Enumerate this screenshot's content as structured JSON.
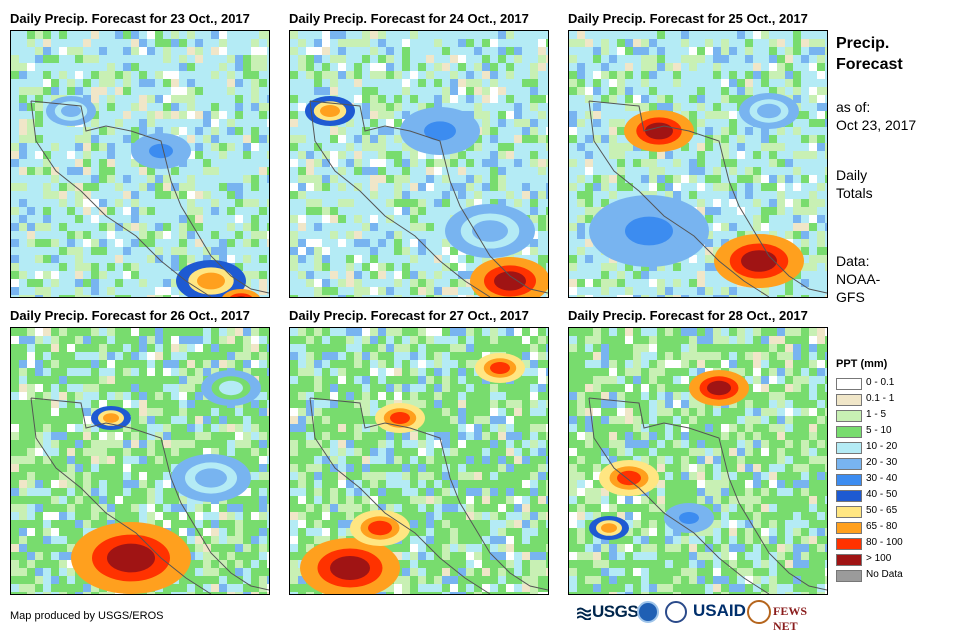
{
  "panels": [
    {
      "title": "Daily Precip. Forecast for 23 Oct., 2017"
    },
    {
      "title": "Daily Precip. Forecast for 24 Oct., 2017"
    },
    {
      "title": "Daily Precip. Forecast for 25 Oct., 2017"
    },
    {
      "title": "Daily Precip. Forecast for 26 Oct., 2017"
    },
    {
      "title": "Daily Precip. Forecast for 27 Oct., 2017"
    },
    {
      "title": "Daily Precip. Forecast for 28 Oct., 2017"
    }
  ],
  "sidebar": {
    "title_line1": "Precip.",
    "title_line2": "Forecast",
    "asof_label": "as of:",
    "asof_date": "Oct 23, 2017",
    "daily_line1": "Daily",
    "daily_line2": "Totals",
    "data_label": "Data:",
    "data_source_line1": "NOAA-",
    "data_source_line2": "GFS"
  },
  "legend": {
    "title": "PPT (mm)",
    "items": [
      {
        "label": "0 - 0.1",
        "color": "#ffffff"
      },
      {
        "label": "0.1 - 1",
        "color": "#f0e6c8"
      },
      {
        "label": "1 - 5",
        "color": "#c8f0b4"
      },
      {
        "label": "5 - 10",
        "color": "#78dc6e"
      },
      {
        "label": "10 - 20",
        "color": "#b4ebf5"
      },
      {
        "label": "20 - 30",
        "color": "#78b4f0"
      },
      {
        "label": "30 - 40",
        "color": "#3c8cf0"
      },
      {
        "label": "40 - 50",
        "color": "#1e5ad2"
      },
      {
        "label": "50 - 65",
        "color": "#ffe682"
      },
      {
        "label": "65 - 80",
        "color": "#ffa01e"
      },
      {
        "label": "80 - 100",
        "color": "#ff3200"
      },
      {
        "label": "> 100",
        "color": "#a01414"
      },
      {
        "label": "No Data",
        "color": "#9b9b9b"
      }
    ]
  },
  "footer": {
    "credit": "Map produced by USGS/EROS",
    "logo_usgs": "USGS",
    "logo_usaid": "USAID",
    "logo_fews": "FEWS NET"
  }
}
